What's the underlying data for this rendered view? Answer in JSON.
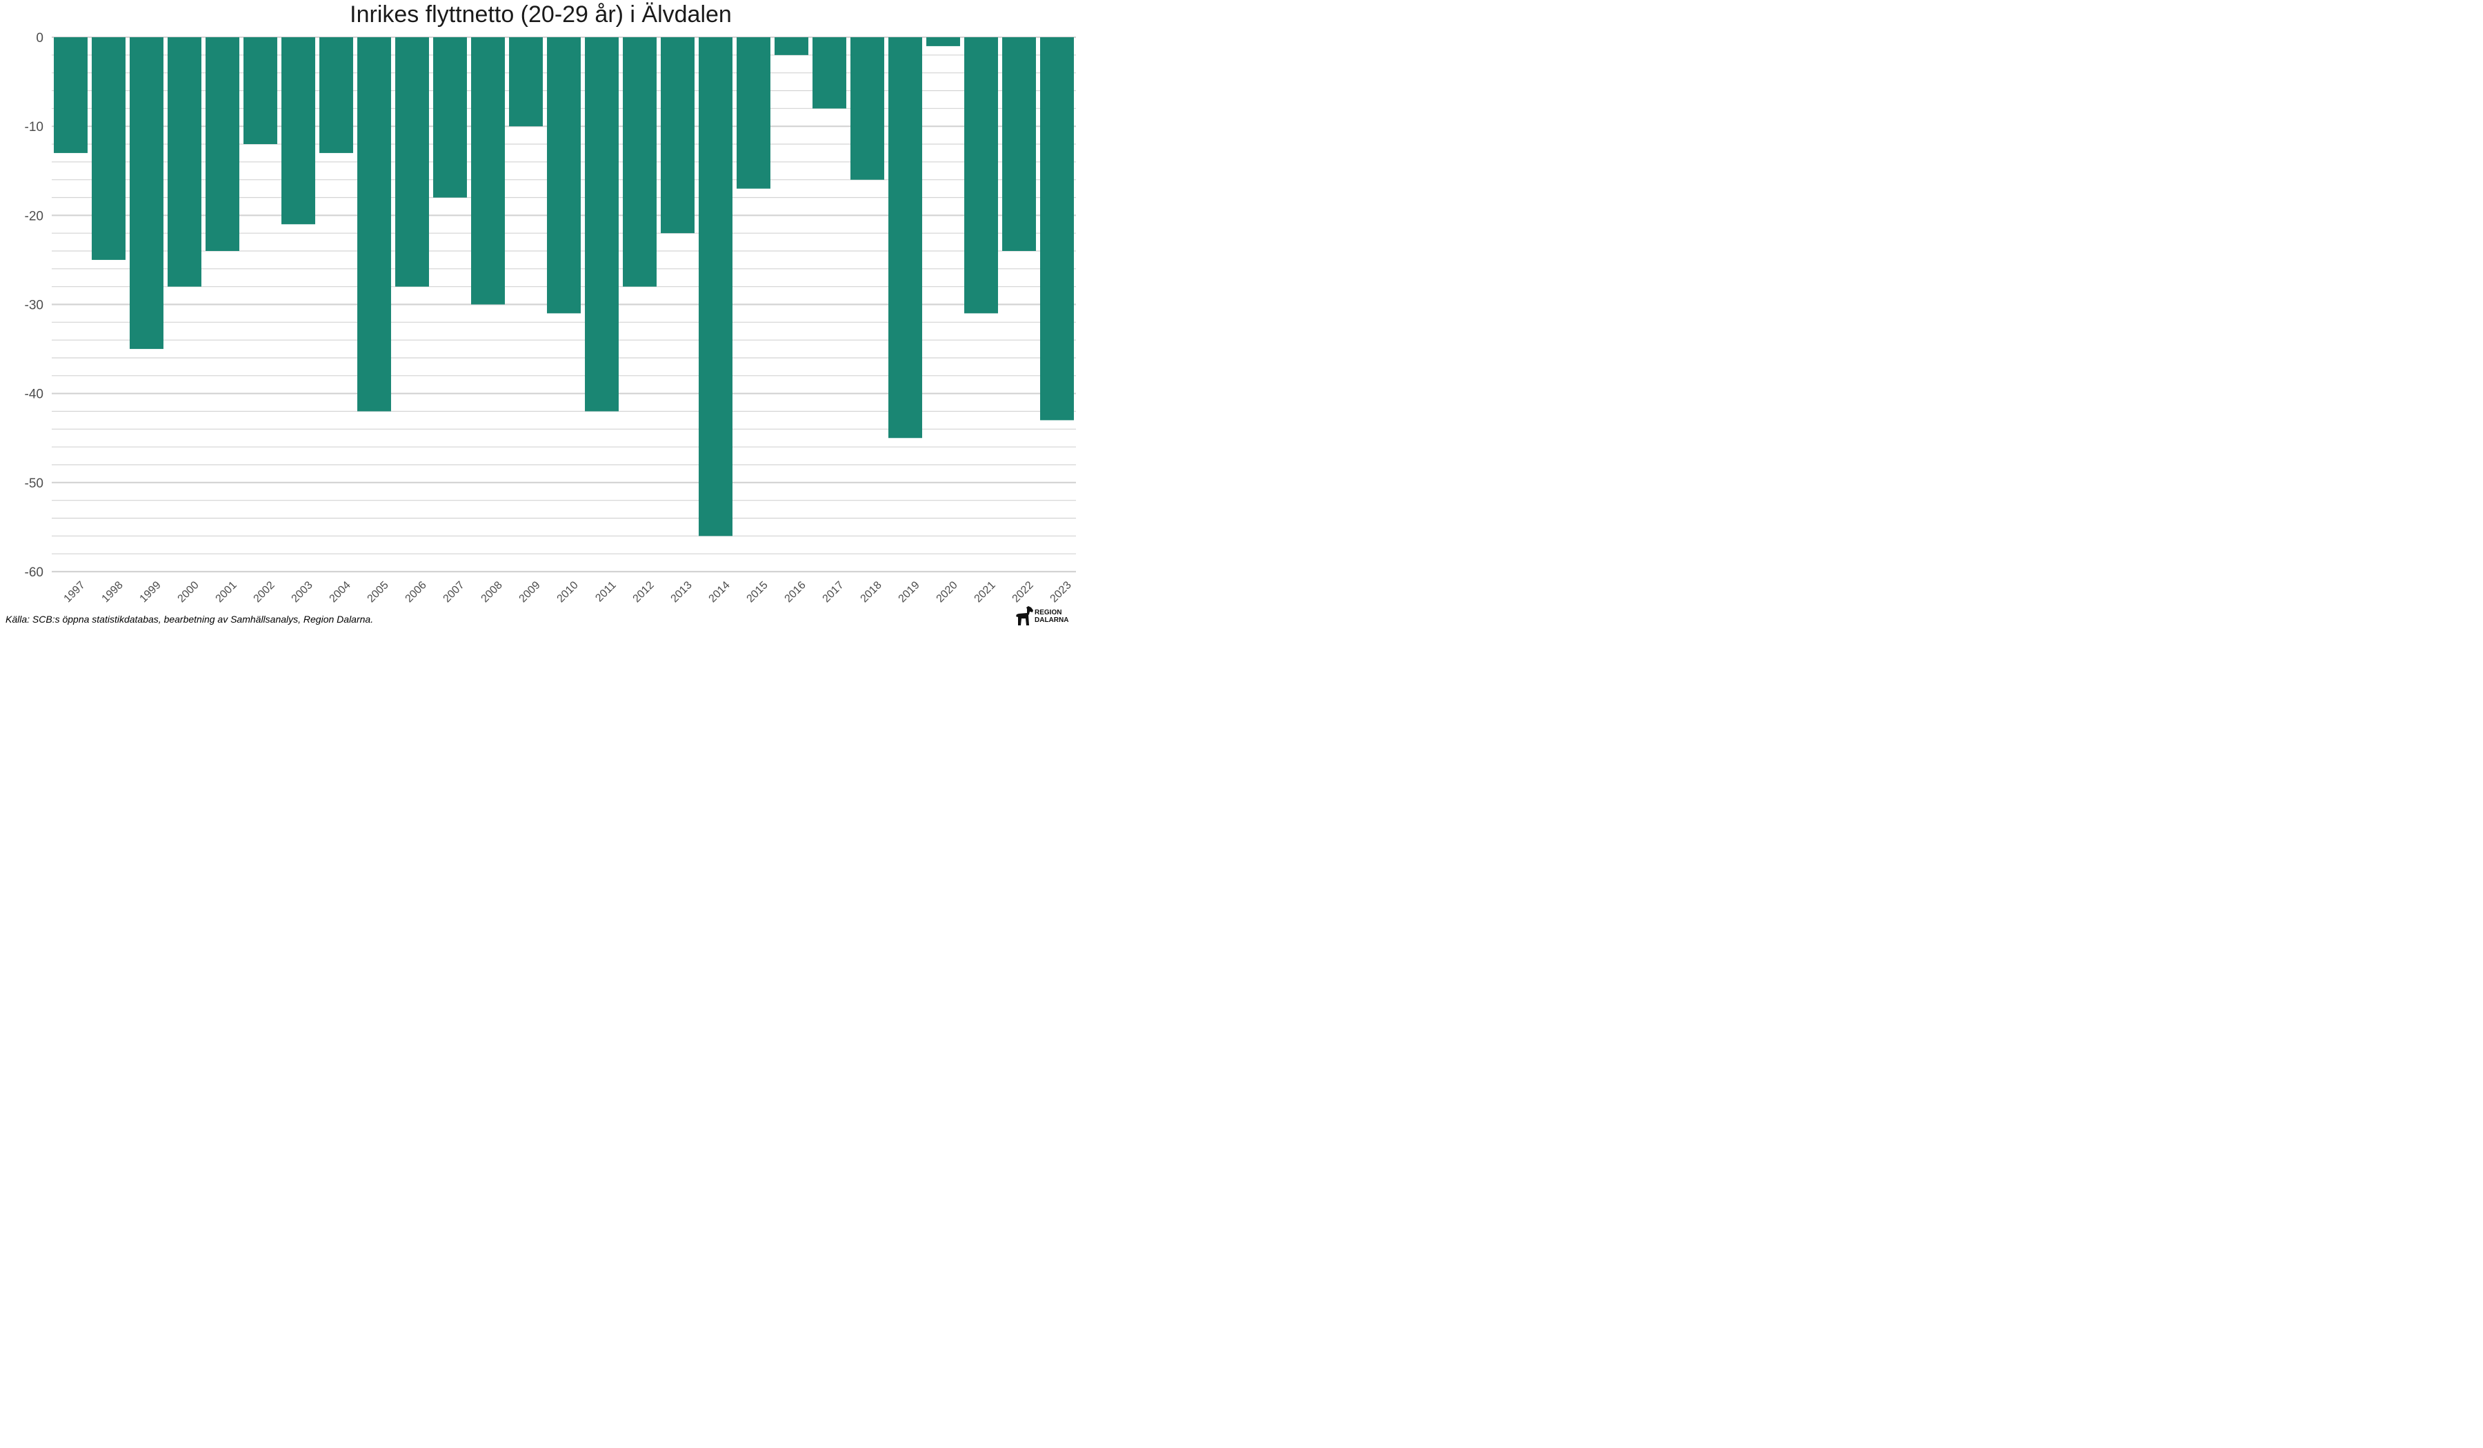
{
  "chart_data": {
    "type": "bar",
    "title": "Inrikes flyttnetto (20-29 år) i Älvdalen",
    "xlabel": "",
    "ylabel": "",
    "categories": [
      "1997",
      "1998",
      "1999",
      "2000",
      "2001",
      "2002",
      "2003",
      "2004",
      "2005",
      "2006",
      "2007",
      "2008",
      "2009",
      "2010",
      "2011",
      "2012",
      "2013",
      "2014",
      "2015",
      "2016",
      "2017",
      "2018",
      "2019",
      "2020",
      "2021",
      "2022",
      "2023"
    ],
    "values": [
      -13,
      -25,
      -35,
      -28,
      -24,
      -12,
      -21,
      -13,
      -42,
      -28,
      -18,
      -30,
      -10,
      -31,
      -42,
      -28,
      -22,
      -56,
      -17,
      -2,
      -8,
      -16,
      -45,
      -1,
      -31,
      -24,
      -43
    ],
    "ylim": [
      -60,
      0
    ],
    "yticks": [
      0,
      -10,
      -20,
      -30,
      -40,
      -50,
      -60
    ],
    "grid": true,
    "bar_color": "#1a8673"
  },
  "source": "Källa: SCB:s öppna statistikdatabas, bearbetning av Samhällsanalys, Region Dalarna.",
  "logo": {
    "line1": "REGION",
    "line2": "DALARNA"
  }
}
